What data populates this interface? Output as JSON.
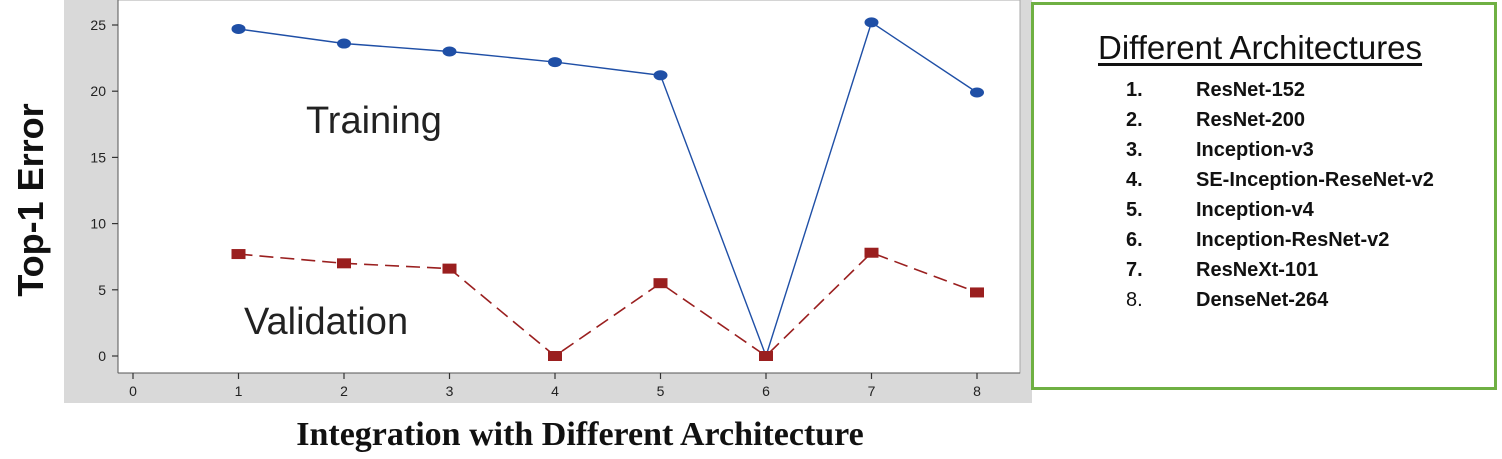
{
  "chart_data": {
    "type": "line",
    "title": "",
    "xlabel": "Integration with Different Architecture",
    "ylabel": "Top-1 Error",
    "xlim": [
      0,
      8
    ],
    "ylim": [
      0,
      25
    ],
    "x_ticks": [
      0,
      1,
      2,
      3,
      4,
      5,
      6,
      7,
      8
    ],
    "y_ticks": [
      0,
      5,
      10,
      15,
      20,
      25
    ],
    "x": [
      1,
      2,
      3,
      4,
      5,
      6,
      7,
      8
    ],
    "series": [
      {
        "name": "Training",
        "values": [
          24.7,
          23.6,
          23.0,
          22.2,
          21.2,
          0,
          25.2,
          19.9
        ],
        "color": "#1f4fa6",
        "style": "solid",
        "marker": "circle"
      },
      {
        "name": "Validation",
        "values": [
          7.7,
          7.0,
          6.6,
          0,
          5.5,
          0,
          7.8,
          4.8
        ],
        "color": "#9a1f1f",
        "style": "dashed",
        "marker": "square"
      }
    ],
    "annotations": [
      "Training",
      "Validation"
    ],
    "grid": false,
    "plot_background": "#d9d9d9"
  },
  "legend": {
    "title": "Different Architectures",
    "items": [
      {
        "num": "1.",
        "label": "ResNet-152"
      },
      {
        "num": "2.",
        "label": "ResNet-200"
      },
      {
        "num": "3.",
        "label": "Inception-v3"
      },
      {
        "num": "4.",
        "label": "SE-Inception-ReseNet-v2"
      },
      {
        "num": "5.",
        "label": "Inception-v4"
      },
      {
        "num": "6.",
        "label": "Inception-ResNet-v2"
      },
      {
        "num": "7.",
        "label": "ResNeXt-101"
      },
      {
        "num": "8.",
        "label": "DenseNet-264"
      }
    ]
  }
}
